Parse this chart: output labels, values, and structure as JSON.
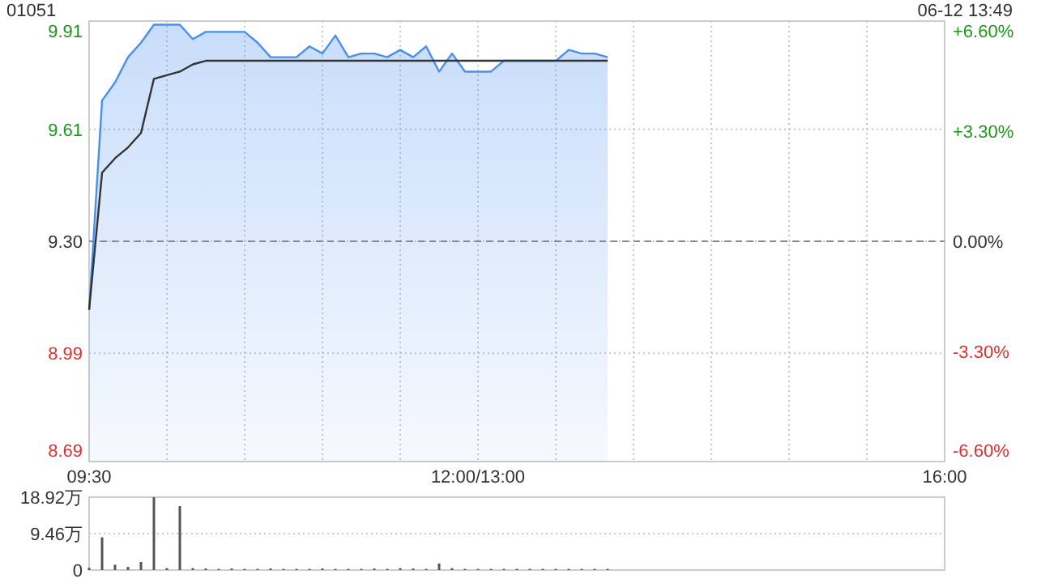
{
  "chart_data": [
    {
      "type": "area",
      "title": "01051",
      "annotations": [
        "06-12 13:49"
      ],
      "categories": [
        "09:30",
        null,
        null,
        null,
        null,
        null,
        null,
        null,
        null,
        null,
        null,
        null,
        null,
        null,
        null,
        null,
        null,
        null,
        null,
        null,
        null,
        null,
        null,
        null,
        null,
        null,
        null,
        null,
        null,
        null,
        "12:00/13:00",
        null,
        null,
        null,
        null,
        null,
        null,
        null,
        null,
        null,
        null,
        null,
        null,
        null,
        null,
        null,
        null,
        null,
        null,
        null,
        null,
        null,
        null,
        null,
        null,
        null,
        null,
        null,
        null,
        null,
        null,
        null,
        null,
        null,
        null,
        null,
        "16:00"
      ],
      "ylim": [
        8.69,
        9.91
      ],
      "yticks": [
        8.69,
        8.99,
        {
          "value": 9.3,
          "label": "9.30"
        },
        9.61,
        9.91
      ],
      "y2lim": [
        -6.6,
        6.6
      ],
      "y2ticks": [
        {
          "value": -6.6,
          "label": "-6.60%"
        },
        {
          "value": -3.3,
          "label": "-3.30%"
        },
        {
          "value": 0,
          "label": "0.00%"
        },
        {
          "value": 3.3,
          "label": "+3.30%"
        },
        {
          "value": 6.6,
          "label": "+6.60%"
        }
      ],
      "grid": true,
      "ref_lines": [
        {
          "axis": "y",
          "value": 9.3,
          "line_style": "dashed",
          "color": "#888888"
        }
      ],
      "series": [
        {
          "type": "area",
          "color": "#4a8ef0",
          "values": [
            9.11,
            9.69,
            9.74,
            9.81,
            9.85,
            9.9,
            9.9,
            9.9,
            9.86,
            9.88,
            9.88,
            9.88,
            9.88,
            9.85,
            9.81,
            9.81,
            9.81,
            9.84,
            9.82,
            9.87,
            9.81,
            9.82,
            9.82,
            9.81,
            9.83,
            9.81,
            9.84,
            9.77,
            9.82,
            9.77,
            9.77,
            9.77,
            9.8,
            9.8,
            9.8,
            9.8,
            9.8,
            9.83,
            9.82,
            9.82,
            9.81,
            null,
            null,
            null,
            null,
            null,
            null,
            null,
            null,
            null,
            null,
            null,
            null,
            null,
            null,
            null,
            null,
            null,
            null,
            null,
            null,
            null,
            null,
            null,
            null,
            null,
            null
          ]
        },
        {
          "type": "line",
          "color": "#333333",
          "values": [
            9.11,
            9.49,
            9.53,
            9.56,
            9.6,
            9.75,
            9.76,
            9.77,
            9.79,
            9.8,
            9.8,
            9.8,
            9.8,
            9.8,
            9.8,
            9.8,
            9.8,
            9.8,
            9.8,
            9.8,
            9.8,
            9.8,
            9.8,
            9.8,
            9.8,
            9.8,
            9.8,
            9.8,
            9.8,
            9.8,
            9.8,
            9.8,
            9.8,
            9.8,
            9.8,
            9.8,
            9.8,
            9.8,
            9.8,
            9.8,
            9.8,
            null,
            null,
            null,
            null,
            null,
            null,
            null,
            null,
            null,
            null,
            null,
            null,
            null,
            null,
            null,
            null,
            null,
            null,
            null,
            null,
            null,
            null,
            null,
            null,
            null,
            null
          ]
        }
      ]
    },
    {
      "type": "bar",
      "color": "#555555",
      "categories": [
        null,
        null,
        null,
        null,
        null,
        null,
        null,
        null,
        null,
        null,
        null,
        null,
        null,
        null,
        null,
        null,
        null,
        null,
        null,
        null,
        null,
        null,
        null,
        null,
        null,
        null,
        null,
        null,
        null,
        null,
        null,
        null,
        null,
        null,
        null,
        null,
        null,
        null,
        null,
        null,
        null,
        null,
        null,
        null,
        null,
        null,
        null,
        null,
        null,
        null,
        null,
        null,
        null,
        null,
        null,
        null,
        null,
        null,
        null,
        null,
        null,
        null,
        null,
        null,
        null,
        null,
        null
      ],
      "ylim": [
        0,
        18.92
      ],
      "yticks": [
        0,
        {
          "value": 9.46,
          "label": "9.46万"
        },
        {
          "value": 18.92,
          "label": "18.92万"
        }
      ],
      "grid": "y",
      "tick_labels": "y",
      "values": [
        0.6,
        8.5,
        1.4,
        0.8,
        2.1,
        18.9,
        0.5,
        16.6,
        0.5,
        0.4,
        0.3,
        0.4,
        0.3,
        0.3,
        0.4,
        0.3,
        0.3,
        0.3,
        0.4,
        0.3,
        0.3,
        0.3,
        0.4,
        0.3,
        0.5,
        0.4,
        0.3,
        1.7,
        0.5,
        0.3,
        0.3,
        0.3,
        0.3,
        0.3,
        0.3,
        0.3,
        0.3,
        0.3,
        0.3,
        0.3,
        0.3,
        null,
        null,
        null,
        null,
        null,
        null,
        null,
        null,
        null,
        null,
        null,
        null,
        null,
        null,
        null,
        null,
        null,
        null,
        null,
        null,
        null,
        null,
        null,
        null,
        null,
        null
      ]
    }
  ]
}
